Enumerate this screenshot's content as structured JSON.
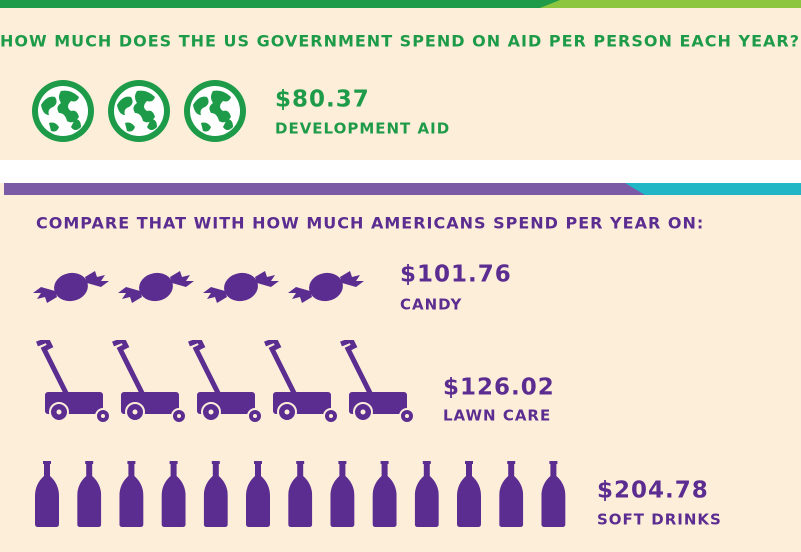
{
  "header": {
    "title": "HOW MUCH DOES THE US GOVERNMENT SPEND ON AID PER PERSON EACH YEAR?"
  },
  "aid": {
    "amount": "$80.37",
    "label": "DEVELOPMENT AID"
  },
  "compare": {
    "title": "COMPARE THAT WITH HOW MUCH AMERICANS SPEND PER YEAR ON:",
    "items": [
      {
        "amount": "$101.76",
        "label": "CANDY"
      },
      {
        "amount": "$126.02",
        "label": "LAWN CARE"
      },
      {
        "amount": "$204.78",
        "label": "SOFT DRINKS"
      }
    ]
  }
}
